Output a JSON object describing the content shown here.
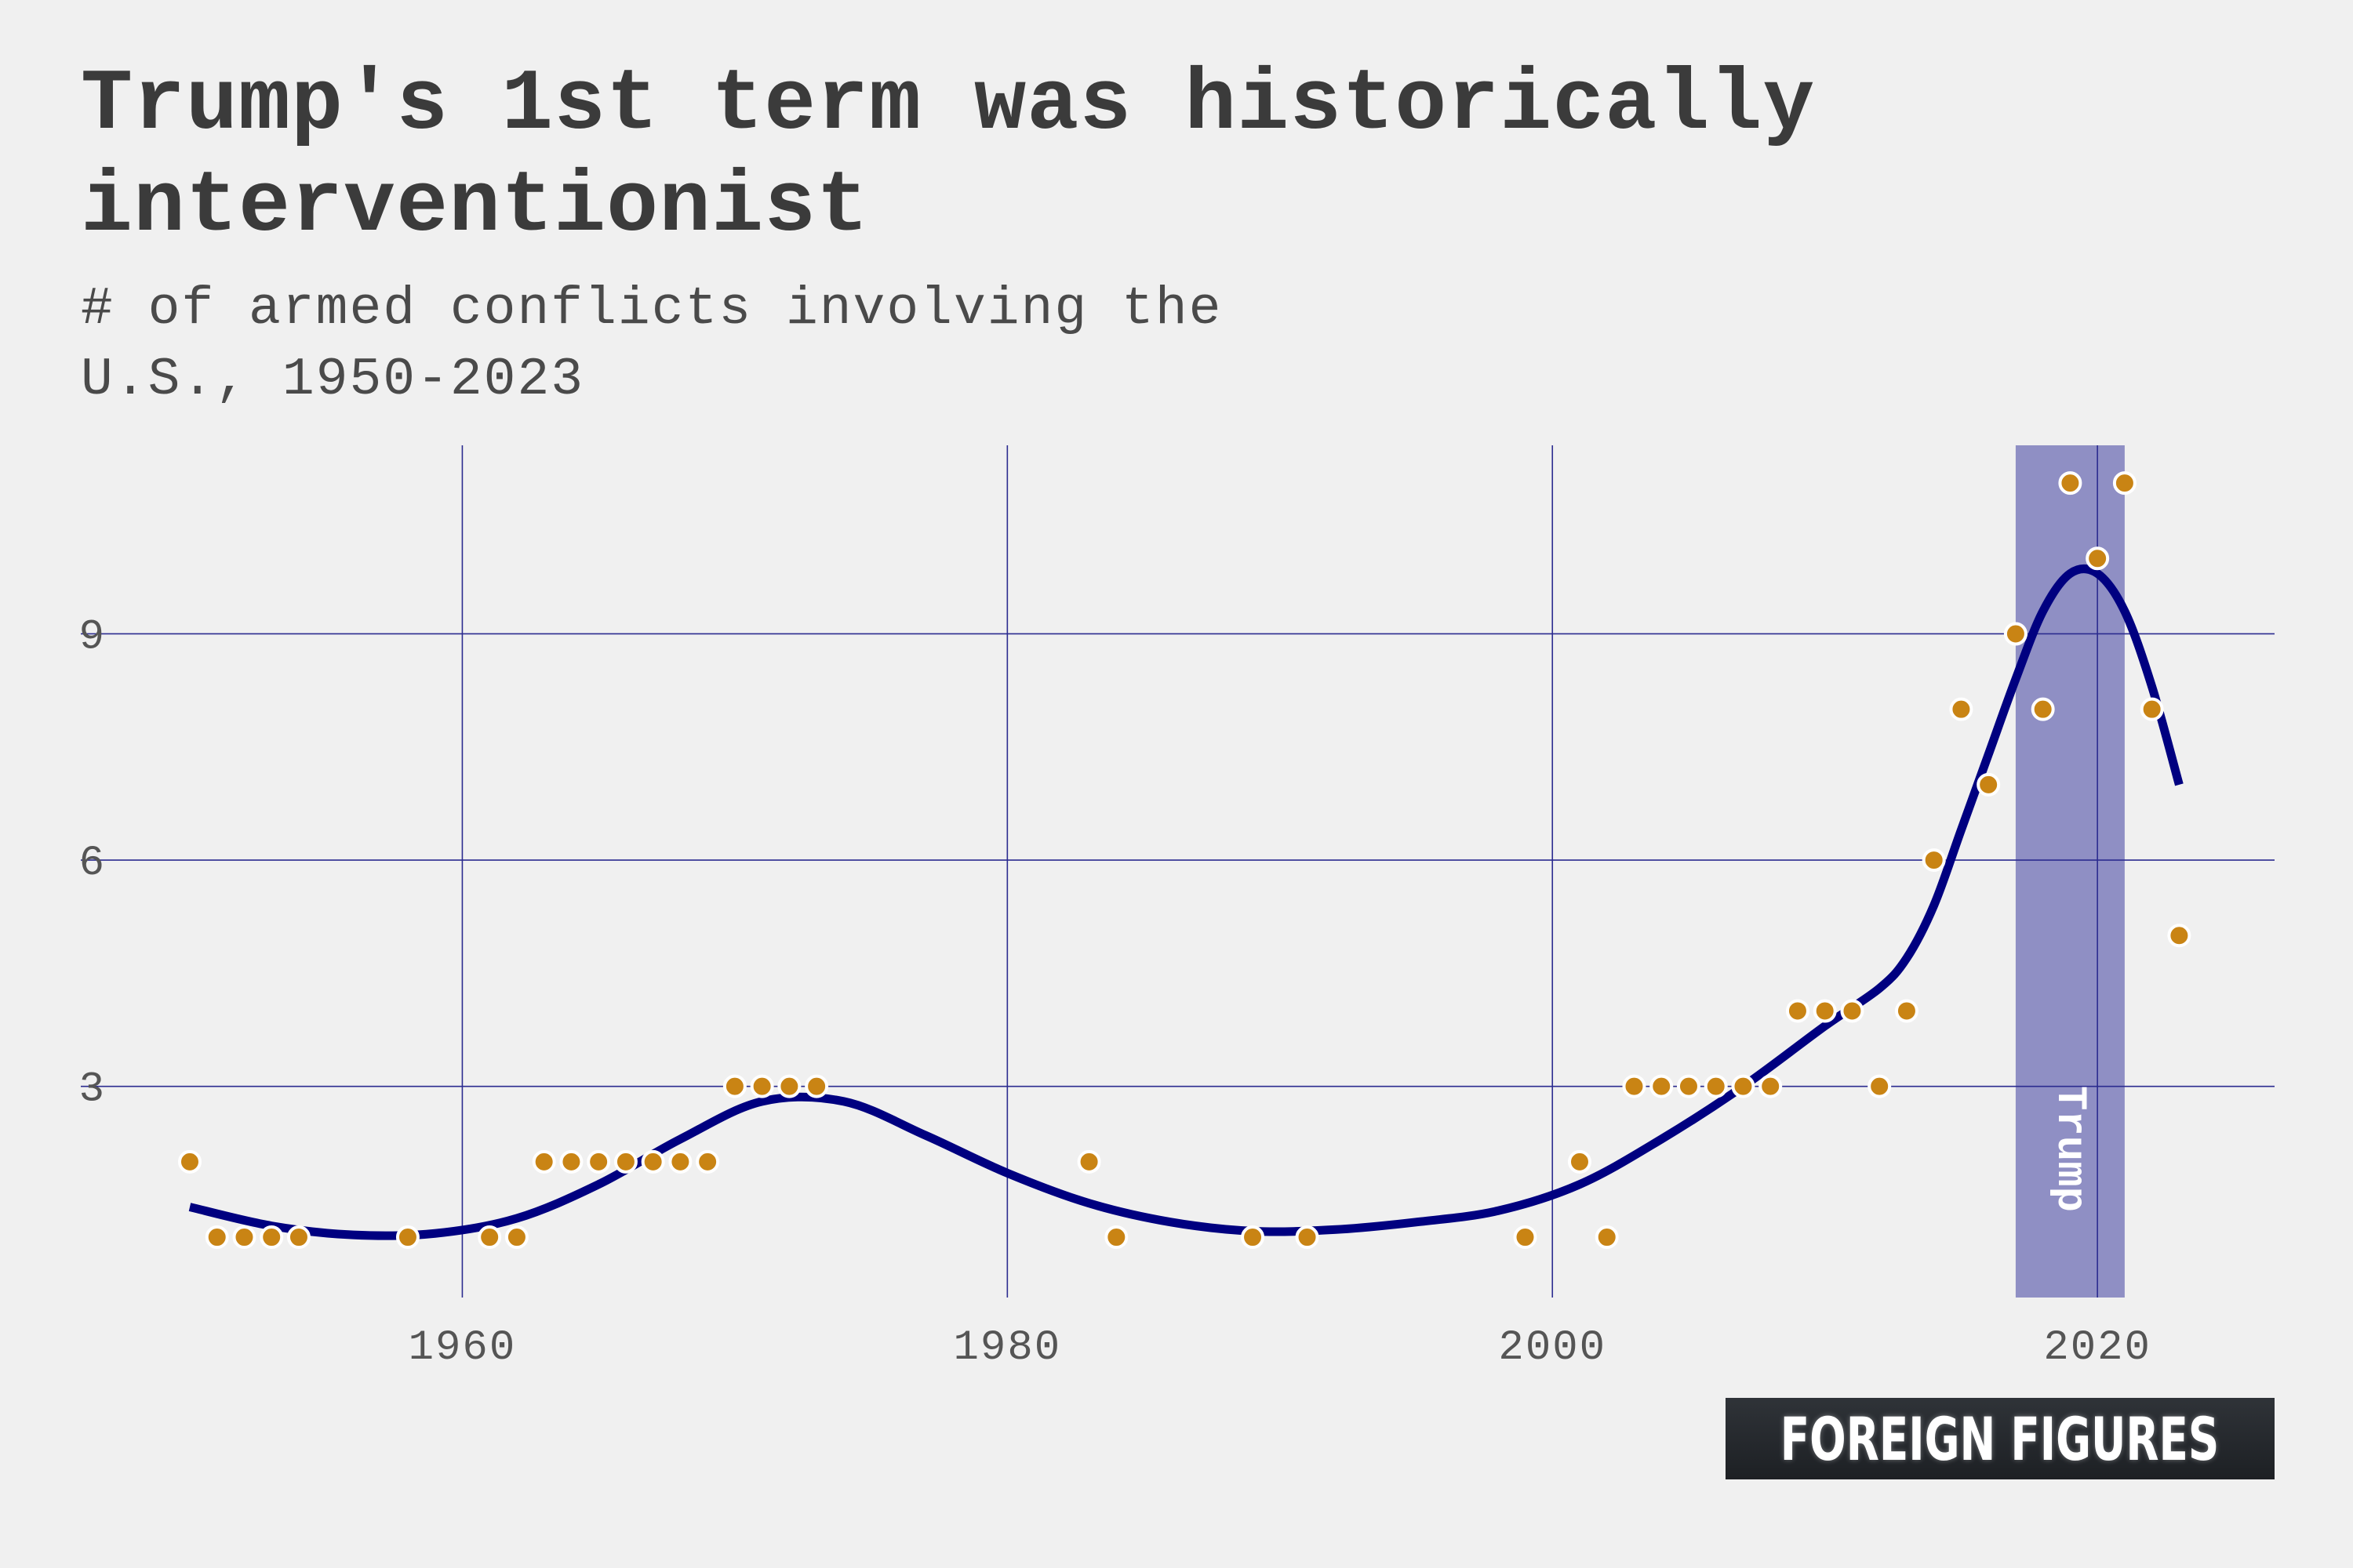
{
  "chart_data": {
    "type": "scatter",
    "title": "Trump's 1st term was historically interventionist",
    "subtitle": "# of armed conflicts involving the U.S., 1950-2023",
    "xlabel": "",
    "ylabel": "",
    "xlim": [
      1946,
      2026.5
    ],
    "ylim": [
      0.2,
      11.5
    ],
    "x_ticks": [
      1960,
      1980,
      2000,
      2020
    ],
    "y_ticks": [
      3,
      6,
      9
    ],
    "grid": true,
    "points": [
      {
        "x": 1950,
        "y": 2
      },
      {
        "x": 1951,
        "y": 1
      },
      {
        "x": 1952,
        "y": 1
      },
      {
        "x": 1953,
        "y": 1
      },
      {
        "x": 1954,
        "y": 1
      },
      {
        "x": 1958,
        "y": 1
      },
      {
        "x": 1961,
        "y": 1
      },
      {
        "x": 1962,
        "y": 1
      },
      {
        "x": 1963,
        "y": 2
      },
      {
        "x": 1964,
        "y": 2
      },
      {
        "x": 1965,
        "y": 2
      },
      {
        "x": 1966,
        "y": 2
      },
      {
        "x": 1967,
        "y": 2
      },
      {
        "x": 1968,
        "y": 2
      },
      {
        "x": 1969,
        "y": 2
      },
      {
        "x": 1970,
        "y": 3
      },
      {
        "x": 1971,
        "y": 3
      },
      {
        "x": 1972,
        "y": 3
      },
      {
        "x": 1973,
        "y": 3
      },
      {
        "x": 1983,
        "y": 2
      },
      {
        "x": 1984,
        "y": 1
      },
      {
        "x": 1989,
        "y": 1
      },
      {
        "x": 1991,
        "y": 1
      },
      {
        "x": 1999,
        "y": 1
      },
      {
        "x": 2001,
        "y": 2
      },
      {
        "x": 2002,
        "y": 1
      },
      {
        "x": 2003,
        "y": 3
      },
      {
        "x": 2004,
        "y": 3
      },
      {
        "x": 2005,
        "y": 3
      },
      {
        "x": 2006,
        "y": 3
      },
      {
        "x": 2007,
        "y": 3
      },
      {
        "x": 2008,
        "y": 3
      },
      {
        "x": 2009,
        "y": 4
      },
      {
        "x": 2010,
        "y": 4
      },
      {
        "x": 2011,
        "y": 4
      },
      {
        "x": 2012,
        "y": 3
      },
      {
        "x": 2013,
        "y": 4
      },
      {
        "x": 2014,
        "y": 6
      },
      {
        "x": 2015,
        "y": 8
      },
      {
        "x": 2016,
        "y": 7
      },
      {
        "x": 2017,
        "y": 9
      },
      {
        "x": 2018,
        "y": 8
      },
      {
        "x": 2019,
        "y": 11
      },
      {
        "x": 2020,
        "y": 10
      },
      {
        "x": 2021,
        "y": 11
      },
      {
        "x": 2022,
        "y": 8
      },
      {
        "x": 2023,
        "y": 5
      }
    ],
    "trend": {
      "x": [
        1950,
        1953,
        1956,
        1959,
        1962,
        1965,
        1968,
        1971,
        1974,
        1977,
        1980,
        1983,
        1986,
        1989,
        1992,
        1995,
        1998,
        2001,
        2004,
        2007,
        2010,
        2012,
        2013,
        2014,
        2015,
        2016,
        2017,
        2018,
        2019,
        2020,
        2021,
        2022,
        2023
      ],
      "y": [
        1.4,
        1.15,
        1.03,
        1.05,
        1.25,
        1.7,
        2.3,
        2.8,
        2.8,
        2.35,
        1.85,
        1.45,
        1.2,
        1.08,
        1.1,
        1.2,
        1.35,
        1.7,
        2.3,
        3.0,
        3.8,
        4.3,
        4.7,
        5.4,
        6.4,
        7.4,
        8.4,
        9.3,
        9.8,
        9.8,
        9.3,
        8.3,
        7.0
      ]
    },
    "highlight": {
      "label": "Trump",
      "x_start": 2017,
      "x_end": 2021
    },
    "colors": {
      "points": "#c98414",
      "point_outline": "#ffffff",
      "trend": "#000080",
      "grid": "#2b2b8f",
      "highlight": "#8f8fc4",
      "background": "#f0f0f0"
    }
  },
  "logo": {
    "text": "FOREIGN FIGURES"
  }
}
